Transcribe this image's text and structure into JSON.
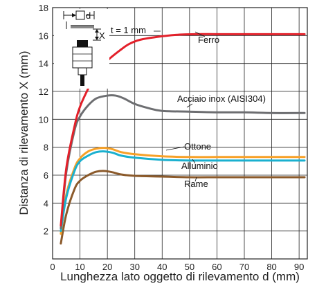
{
  "chart_data": {
    "type": "line",
    "xlabel": "Lunghezza lato oggetto di rilevamento d (mm)",
    "ylabel": "Distanza di rilevamento X (mm)",
    "xlim": [
      0,
      93
    ],
    "ylim": [
      0,
      18
    ],
    "x_ticks": [
      0,
      10,
      20,
      30,
      40,
      50,
      60,
      70,
      80,
      90
    ],
    "y_ticks": [
      2,
      4,
      6,
      8,
      10,
      12,
      14,
      16,
      18
    ],
    "grid": true,
    "annotation": "t = 1 mm",
    "inset": {
      "d_label": "d",
      "x_label": "X"
    },
    "series": [
      {
        "name": "Ferro",
        "color": "#e3202a",
        "x": [
          3,
          5,
          8,
          10,
          13,
          16,
          20,
          25,
          28,
          32,
          38,
          45,
          52,
          60,
          70,
          80,
          92
        ],
        "y": [
          2.4,
          6.5,
          9.5,
          10.9,
          12.2,
          13.3,
          14.2,
          15.0,
          15.4,
          15.7,
          15.9,
          16.05,
          16.1,
          16.1,
          16.1,
          16.1,
          16.1
        ]
      },
      {
        "name": "Acciaio inox (AISI304)",
        "color": "#6d6e71",
        "x": [
          3,
          5,
          8,
          10,
          13,
          16,
          20,
          23,
          26,
          30,
          35,
          40,
          50,
          60,
          70,
          80,
          92
        ],
        "y": [
          2.2,
          6.2,
          9.2,
          10.2,
          11.0,
          11.5,
          11.7,
          11.7,
          11.5,
          11.1,
          10.8,
          10.6,
          10.55,
          10.5,
          10.5,
          10.45,
          10.45
        ]
      },
      {
        "name": "Ottone",
        "color": "#f7a128",
        "x": [
          3,
          5,
          8,
          10,
          13,
          16,
          19,
          22,
          25,
          30,
          40,
          50,
          60,
          70,
          80,
          92
        ],
        "y": [
          1.8,
          4.6,
          6.5,
          7.2,
          7.7,
          7.9,
          7.95,
          7.85,
          7.65,
          7.5,
          7.35,
          7.3,
          7.3,
          7.3,
          7.3,
          7.3
        ]
      },
      {
        "name": "Alluminio",
        "color": "#1ab0cf",
        "x": [
          3,
          5,
          8,
          10,
          13,
          16,
          19,
          22,
          25,
          30,
          40,
          50,
          60,
          70,
          80,
          92
        ],
        "y": [
          2.0,
          4.4,
          6.3,
          7.0,
          7.4,
          7.65,
          7.7,
          7.6,
          7.4,
          7.25,
          7.1,
          7.05,
          7.05,
          7.05,
          7.05,
          7.05
        ]
      },
      {
        "name": "Rame",
        "color": "#8b5a2b",
        "x": [
          3,
          5,
          8,
          10,
          13,
          16,
          19,
          22,
          25,
          30,
          40,
          50,
          60,
          70,
          80,
          92
        ],
        "y": [
          1.1,
          3.2,
          5.0,
          5.6,
          6.0,
          6.25,
          6.3,
          6.2,
          6.05,
          5.95,
          5.9,
          5.85,
          5.85,
          5.85,
          5.85,
          5.85
        ]
      }
    ]
  }
}
